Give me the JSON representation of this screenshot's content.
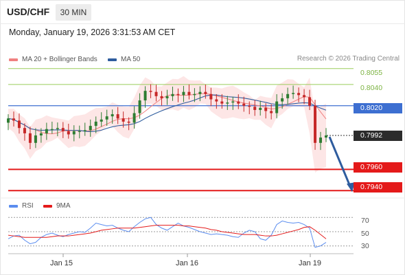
{
  "header": {
    "pair": "USD/CHF",
    "timeframe": "30 MIN",
    "datetime": "Monday, January 19, 2026 3:31:53 AM CET"
  },
  "legend": {
    "ma20": "MA 20 + Bollinger Bands",
    "ma50": "MA 50",
    "credit": "Research © 2026 Trading Central",
    "rsi": "RSI",
    "rsi_ma": "9MA"
  },
  "colors": {
    "ma20": "#f08080",
    "ma50": "#2e5c9e",
    "bollinger_fill": "#fde3e3",
    "resistance_green": "#9acd5a",
    "pivot_blue": "#3d6fd1",
    "support_red": "#e41a1a",
    "candle_up": "#2e7d32",
    "candle_down": "#c62828",
    "rsi": "#5b8def",
    "rsi_ma": "#e41a1a",
    "arrow": "#2e5c9e"
  },
  "chart_data": {
    "type": "candlestick",
    "symbol": "USD/CHF",
    "timeframe": "30 MIN",
    "ylim": [
      0.7935,
      0.806
    ],
    "levels": [
      {
        "value": 0.8055,
        "label": "0.8055",
        "kind": "resistance"
      },
      {
        "value": 0.804,
        "label": "0.8040",
        "kind": "resistance"
      },
      {
        "value": 0.802,
        "label": "0.8020",
        "kind": "pivot"
      },
      {
        "value": 0.7992,
        "label": "0.7992",
        "kind": "last"
      },
      {
        "value": 0.796,
        "label": "0.7960",
        "kind": "support"
      },
      {
        "value": 0.794,
        "label": "0.7940",
        "kind": "support"
      }
    ],
    "x_ticks": [
      "Jan 15",
      "Jan 16",
      "Jan 19"
    ],
    "close_series": [
      0.8008,
      0.8006,
      0.7999,
      0.7994,
      0.7985,
      0.7992,
      0.7994,
      0.7998,
      0.7998,
      0.7999,
      0.7996,
      0.7993,
      0.7996,
      0.7996,
      0.7997,
      0.8001,
      0.8005,
      0.8007,
      0.801,
      0.8012,
      0.8008,
      0.8005,
      0.8004,
      0.8013,
      0.8025,
      0.8034,
      0.8033,
      0.8029,
      0.8027,
      0.8029,
      0.8031,
      0.803,
      0.8033,
      0.803,
      0.8031,
      0.8033,
      0.8031,
      0.8026,
      0.8024,
      0.8022,
      0.8023,
      0.8024,
      0.8022,
      0.802,
      0.8019,
      0.8016,
      0.8018,
      0.8015,
      0.8013,
      0.8024,
      0.8027,
      0.8031,
      0.8032,
      0.803,
      0.8028,
      0.802,
      0.7985,
      0.799,
      0.7992
    ],
    "trend_arrow": {
      "from": 0.7992,
      "to": 0.794,
      "direction": "down"
    },
    "rsi": {
      "levels": [
        70,
        50,
        30
      ],
      "ylim": [
        22,
        76
      ],
      "values": [
        40,
        44,
        45,
        38,
        33,
        35,
        42,
        46,
        48,
        45,
        43,
        46,
        48,
        50,
        49,
        55,
        62,
        60,
        58,
        59,
        55,
        52,
        50,
        57,
        63,
        68,
        70,
        60,
        55,
        52,
        57,
        62,
        58,
        56,
        53,
        50,
        48,
        46,
        47,
        46,
        45,
        43,
        42,
        48,
        52,
        50,
        40,
        38,
        45,
        60,
        65,
        63,
        62,
        63,
        60,
        55,
        28,
        30,
        35
      ],
      "ma9": [
        45,
        44,
        43,
        42,
        42,
        42,
        42,
        42,
        43,
        44,
        44,
        44,
        45,
        46,
        47,
        48,
        50,
        52,
        53,
        54,
        55,
        55,
        55,
        55,
        56,
        57,
        58,
        59,
        59,
        59,
        59,
        59,
        58,
        58,
        57,
        56,
        55,
        53,
        52,
        50,
        49,
        48,
        47,
        46,
        46,
        46,
        45,
        44,
        44,
        45,
        47,
        49,
        51,
        53,
        56,
        57,
        52,
        46,
        40
      ]
    }
  }
}
